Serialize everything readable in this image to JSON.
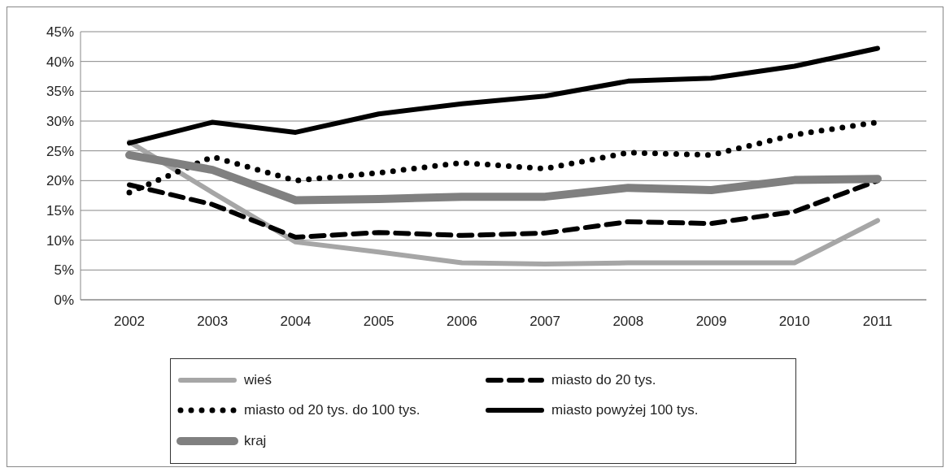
{
  "chart_data": {
    "type": "line",
    "categories": [
      "2002",
      "2003",
      "2004",
      "2005",
      "2006",
      "2007",
      "2008",
      "2009",
      "2010",
      "2011"
    ],
    "series": [
      {
        "name": "wieś",
        "color": "#a6a6a6",
        "line_style": "solid",
        "values": [
          26.5,
          18,
          9.7,
          8,
          6.2,
          6,
          6.2,
          6.2,
          6.2,
          13.3
        ]
      },
      {
        "name": "miasto do 20 tys.",
        "color": "#000000",
        "line_style": "dashed",
        "values": [
          19.3,
          16,
          10.5,
          11.3,
          10.8,
          11.2,
          13.1,
          12.8,
          14.8,
          20
        ]
      },
      {
        "name": "miasto od 20 tys. do 100 tys.",
        "color": "#000000",
        "line_style": "dotted",
        "values": [
          18,
          24,
          20,
          21.3,
          23,
          22,
          24.7,
          24.3,
          27.7,
          29.8
        ]
      },
      {
        "name": "miasto powyżej 100 tys.",
        "color": "#000000",
        "line_style": "solid",
        "values": [
          26.3,
          29.8,
          28.1,
          31.2,
          32.9,
          34.2,
          36.7,
          37.2,
          39.2,
          42.2
        ]
      },
      {
        "name": "kraj",
        "color": "#808080",
        "line_style": "solid",
        "values": [
          24.3,
          21.8,
          16.7,
          16.9,
          17.3,
          17.3,
          18.8,
          18.4,
          20.1,
          20.3
        ]
      }
    ],
    "ylim": [
      0,
      45
    ],
    "yticks": [
      {
        "value": 0,
        "label": "0%"
      },
      {
        "value": 5,
        "label": "5%"
      },
      {
        "value": 10,
        "label": "10%"
      },
      {
        "value": 15,
        "label": "15%"
      },
      {
        "value": 20,
        "label": "20%"
      },
      {
        "value": 25,
        "label": "25%"
      },
      {
        "value": 30,
        "label": "30%"
      },
      {
        "value": 35,
        "label": "35%"
      },
      {
        "value": 40,
        "label": "40%"
      },
      {
        "value": 45,
        "label": "45%"
      }
    ],
    "grid": "y",
    "legend": "bottom",
    "marker": "none"
  }
}
